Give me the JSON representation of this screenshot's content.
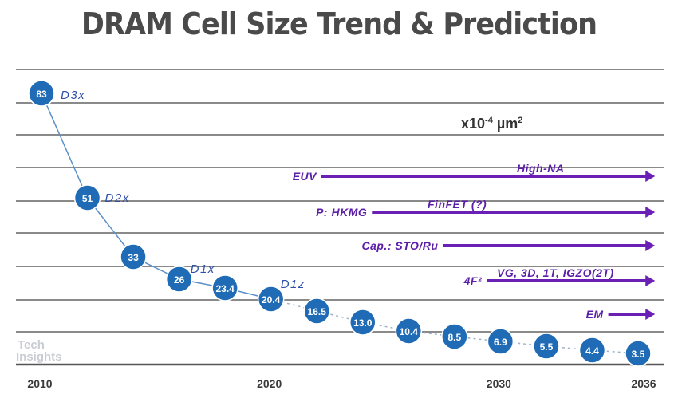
{
  "chart_data": {
    "type": "line",
    "title": "DRAM Cell Size Trend & Prediction",
    "unit_label": "x10-4 µm2",
    "unit_base": "x10",
    "unit_exp": "-4",
    "unit_main": " µm",
    "unit_sup": "2",
    "xlabel": "",
    "ylabel": "",
    "x": [
      2010,
      2012,
      2014,
      2016,
      2018,
      2020,
      2022,
      2024,
      2026,
      2028,
      2030,
      2032,
      2034,
      2036
    ],
    "values": [
      83,
      51,
      33,
      26,
      23.4,
      20.4,
      16.5,
      13.0,
      10.4,
      8.5,
      6.9,
      5.5,
      4.4,
      3.5
    ],
    "value_labels": [
      "83",
      "51",
      "33",
      "26",
      "23.4",
      "20.4",
      "16.5",
      "13.0",
      "10.4",
      "8.5",
      "6.9",
      "5.5",
      "4.4",
      "3.5"
    ],
    "actual_until_index": 5,
    "series_style": {
      "actual": "solid",
      "prediction": "dotted"
    },
    "x_ticks": [
      2010,
      2020,
      2030,
      2036
    ],
    "x_tick_labels": [
      "2010",
      "2020",
      "2030",
      "2036"
    ],
    "grid": true,
    "node_labels": [
      {
        "text": "D3x",
        "index": 0
      },
      {
        "text": "D2x",
        "index": 1
      },
      {
        "text": "D1x",
        "index": 3
      },
      {
        "text": "D1z",
        "index": 5
      }
    ],
    "technology_arrows": [
      {
        "label": "EUV",
        "note": "High-NA",
        "start_year": 2022.2,
        "end_year": 2036.6,
        "color": "#6a1fb5"
      },
      {
        "label": "P: HKMG",
        "note": "FinFET (?)",
        "start_year": 2024.4,
        "end_year": 2036.6,
        "color": "#6a1fb5"
      },
      {
        "label": "Cap.: STO/Ru",
        "note": "",
        "start_year": 2027.5,
        "end_year": 2036.6,
        "color": "#6a1fb5"
      },
      {
        "label": "4F²",
        "note": "VG, 3D, 1T, IGZO(2T)",
        "start_year": 2029.4,
        "end_year": 2036.6,
        "color": "#6a1fb5"
      },
      {
        "label": "EM",
        "note": "",
        "start_year": 2034.7,
        "end_year": 2036.6,
        "color": "#6a1fb5",
        "label_color": "#333333"
      }
    ],
    "colors": {
      "point": "#1f6bb5",
      "line": "#5b8fc7",
      "node_label": "#2e4fa8",
      "tech": "#5b1fa8"
    }
  },
  "watermark": {
    "line1": "Tech",
    "line2": "Insights"
  }
}
